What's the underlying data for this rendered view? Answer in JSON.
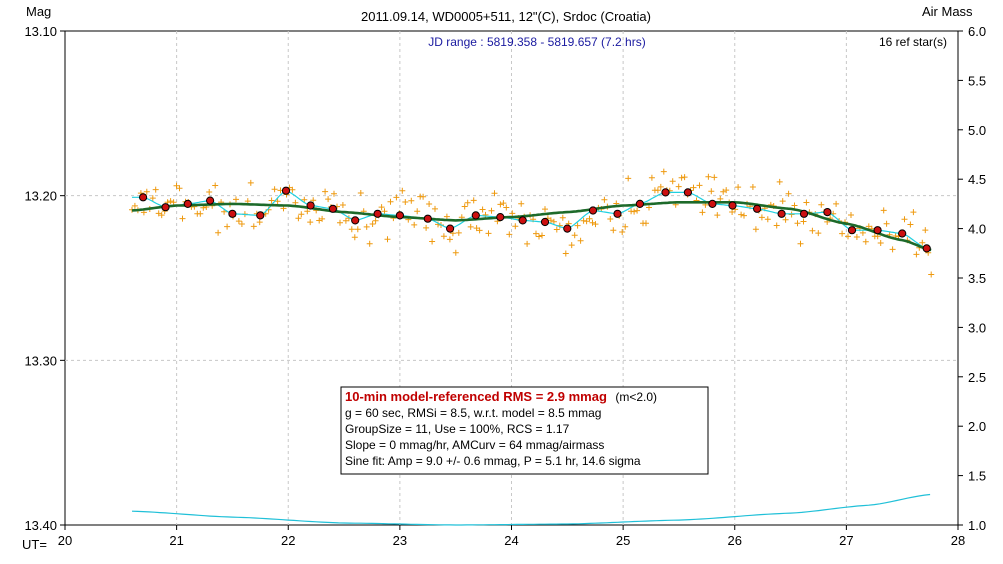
{
  "chart_data": {
    "type": "scatter",
    "title": "2011.09.14, WD0005+511, 12\"(C), Srdoc (Croatia)",
    "subtitle": "JD range : 5819.358 - 5819.657 (7.2 hrs)",
    "ref_stars": "16 ref star(s)",
    "ylabel_left": "Mag",
    "ylabel_right": "Air Mass",
    "xlabel": "UT=",
    "xlim": [
      20,
      28
    ],
    "ylim_left": [
      13.1,
      13.4
    ],
    "ylim_right": [
      1.0,
      6.0
    ],
    "x_ticks": [
      "20",
      "21",
      "22",
      "23",
      "24",
      "25",
      "26",
      "27",
      "28"
    ],
    "y_left_ticks": [
      "13.10",
      "13.20",
      "13.30",
      "13.40"
    ],
    "y_right_ticks": [
      "1.0",
      "1.5",
      "2.0",
      "2.5",
      "3.0",
      "3.5",
      "4.0",
      "4.5",
      "5.0",
      "5.5",
      "6.0"
    ],
    "grid": true,
    "colors": {
      "raw_points": "#ee9a10",
      "binned_points": "#cc1010",
      "model_curve": "#1d6a2a",
      "sine_curve": "#20d0e0",
      "airmass_curve": "#20c0d8",
      "grid": "#c8c8c8"
    },
    "raw_range": {
      "x_start": 20.6,
      "x_end": 27.76,
      "count": 270
    },
    "binned_points": {
      "x": [
        20.7,
        20.9,
        21.1,
        21.3,
        21.5,
        21.75,
        21.98,
        22.2,
        22.4,
        22.6,
        22.8,
        23.0,
        23.25,
        23.45,
        23.68,
        23.9,
        24.1,
        24.3,
        24.5,
        24.73,
        24.95,
        25.15,
        25.38,
        25.58,
        25.8,
        25.98,
        26.2,
        26.42,
        26.62,
        26.83,
        27.05,
        27.28,
        27.5,
        27.72
      ],
      "y": [
        13.201,
        13.207,
        13.205,
        13.203,
        13.211,
        13.212,
        13.197,
        13.206,
        13.208,
        13.215,
        13.211,
        13.212,
        13.214,
        13.22,
        13.212,
        13.213,
        13.215,
        13.216,
        13.22,
        13.209,
        13.211,
        13.205,
        13.198,
        13.198,
        13.205,
        13.206,
        13.208,
        13.211,
        13.211,
        13.21,
        13.221,
        13.221,
        13.223,
        13.232
      ]
    },
    "model_curve": {
      "x": [
        20.6,
        21.0,
        21.5,
        22.0,
        22.5,
        23.0,
        23.5,
        24.0,
        24.5,
        25.0,
        25.5,
        26.0,
        26.5,
        27.0,
        27.5,
        27.76
      ],
      "y": [
        13.209,
        13.206,
        13.205,
        13.206,
        13.21,
        13.213,
        13.215,
        13.213,
        13.21,
        13.206,
        13.204,
        13.204,
        13.208,
        13.217,
        13.227,
        13.233
      ]
    },
    "airmass": {
      "x": [
        20.6,
        21.5,
        22.5,
        23.5,
        24.5,
        25.5,
        26.5,
        27.2,
        27.76
      ],
      "y": [
        1.14,
        1.08,
        1.02,
        1.0,
        1.01,
        1.05,
        1.12,
        1.2,
        1.31
      ]
    },
    "info_box": {
      "line1_red": "10-min model-referenced RMS = 2.9 mmag",
      "line1_suffix": "(m<2.0)",
      "line2": "g = 60 sec, RMSi = 8.5, w.r.t. model = 8.5 mmag",
      "line3": "GroupSize = 11, Use = 100%, RCS = 1.17",
      "line4": "Slope = 0 mmag/hr, AMCurv = 64 mmag/airmass",
      "line5": "Sine fit: Amp = 9.0 +/- 0.6 mmag, P = 5.1 hr, 14.6 sigma"
    }
  }
}
